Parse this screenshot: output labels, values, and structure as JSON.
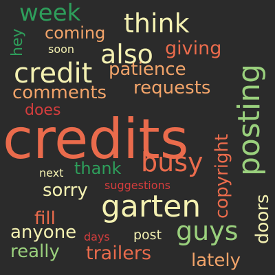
{
  "background_color": "#2b2b2b",
  "words": [
    {
      "text": "credits",
      "color": "#ea6b4c"
    },
    {
      "text": "garten",
      "color": "#f4f1b2"
    },
    {
      "text": "posting",
      "color": "#9ad07d"
    },
    {
      "text": "busy",
      "color": "#ea6b4c"
    },
    {
      "text": "credit",
      "color": "#f4f1b2"
    },
    {
      "text": "also",
      "color": "#f4f1b2"
    },
    {
      "text": "think",
      "color": "#f4f1b2"
    },
    {
      "text": "guys",
      "color": "#9ad07d"
    },
    {
      "text": "week",
      "color": "#2e9e5b"
    },
    {
      "text": "giving",
      "color": "#ea6b4c"
    },
    {
      "text": "patience",
      "color": "#f2a46a"
    },
    {
      "text": "comments",
      "color": "#f2a46a"
    },
    {
      "text": "requests",
      "color": "#f2a46a"
    },
    {
      "text": "coming",
      "color": "#f2a46a"
    },
    {
      "text": "copyright",
      "color": "#ea6b4c"
    },
    {
      "text": "thank",
      "color": "#2e9e5b"
    },
    {
      "text": "sorry",
      "color": "#f4f1b2"
    },
    {
      "text": "fill",
      "color": "#ea6b4c"
    },
    {
      "text": "anyone",
      "color": "#f4f1b2"
    },
    {
      "text": "really",
      "color": "#9ad07d"
    },
    {
      "text": "trailers",
      "color": "#ea6b4c"
    },
    {
      "text": "lately",
      "color": "#f2a46a"
    },
    {
      "text": "doors",
      "color": "#f4f1b2"
    },
    {
      "text": "does",
      "color": "#d43d3d"
    },
    {
      "text": "hey",
      "color": "#2e9e5b"
    },
    {
      "text": "soon",
      "color": "#f4f1b2"
    },
    {
      "text": "next",
      "color": "#f4f1b2"
    },
    {
      "text": "post",
      "color": "#f4f1b2"
    },
    {
      "text": "suggestions",
      "color": "#d43d3d"
    },
    {
      "text": "days",
      "color": "#d43d3d"
    }
  ]
}
